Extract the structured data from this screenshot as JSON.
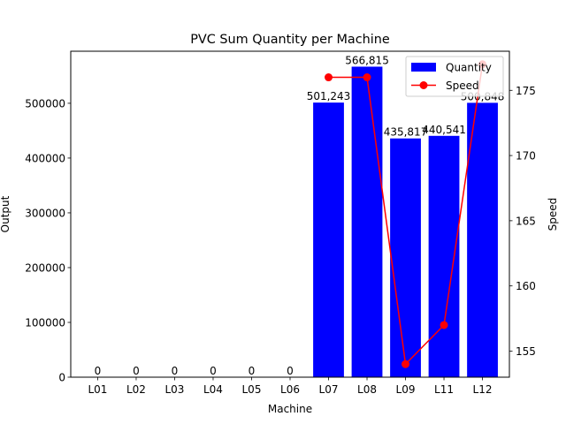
{
  "chart_data": {
    "type": "bar",
    "title": "PVC Sum Quantity per Machine",
    "xlabel": "Machine",
    "ylabel": "Output",
    "y2label": "Speed",
    "y2label_color": "#ff0000",
    "categories": [
      "L01",
      "L02",
      "L03",
      "L04",
      "L05",
      "L06",
      "L07",
      "L08",
      "L09",
      "L11",
      "L12"
    ],
    "series": [
      {
        "name": "Quantity",
        "kind": "bar",
        "axis": "left",
        "color": "#0000ff",
        "values": [
          0,
          0,
          0,
          0,
          0,
          0,
          501243,
          566815,
          435817,
          440541,
          500848
        ],
        "labels": [
          "0",
          "0",
          "0",
          "0",
          "0",
          "0",
          "501,243",
          "566,815",
          "435,817",
          "440,541",
          "500,848"
        ]
      },
      {
        "name": "Speed",
        "kind": "line",
        "axis": "right",
        "color": "#ff0000",
        "marker": "circle",
        "values": [
          null,
          null,
          null,
          null,
          null,
          null,
          176,
          176,
          154,
          157,
          177
        ]
      }
    ],
    "ylim": [
      0,
      595000
    ],
    "yticks": [
      0,
      100000,
      200000,
      300000,
      400000,
      500000
    ],
    "y2lim": [
      153,
      178
    ],
    "y2ticks": [
      155,
      160,
      165,
      170,
      175
    ],
    "grid": false,
    "legend_position": "top-right"
  }
}
